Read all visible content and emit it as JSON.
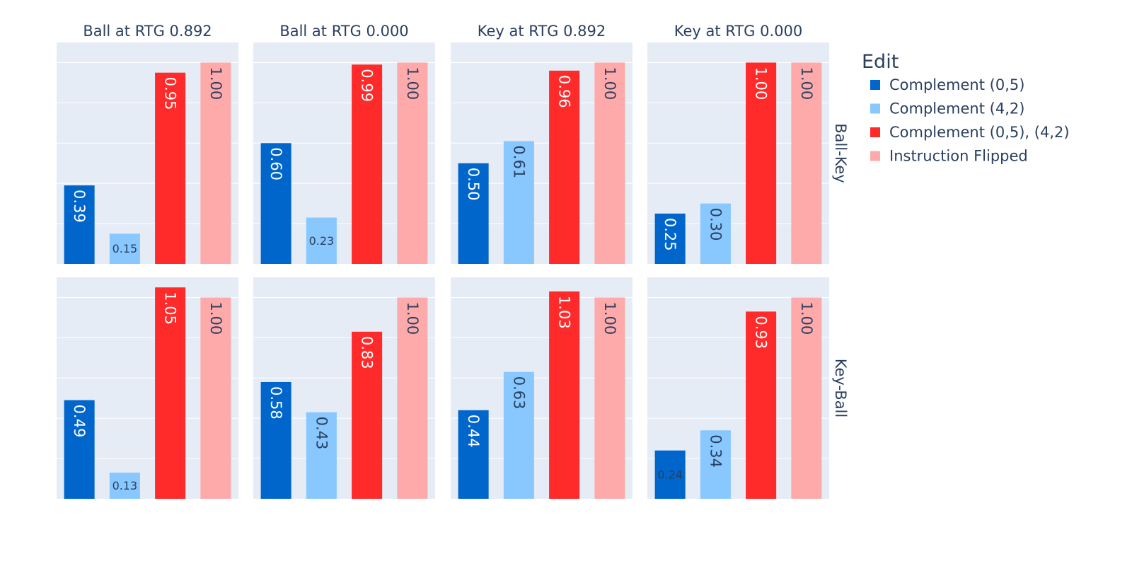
{
  "chart_data": {
    "type": "bar",
    "layout": "facet-grid",
    "ylim": [
      0,
      1.1
    ],
    "grid": true,
    "legend_position": "top-right",
    "legend": {
      "title": "Edit",
      "entries": [
        {
          "name": "Complement (0,5)",
          "color": "#0066cc"
        },
        {
          "name": "Complement (4,2)",
          "color": "#88c8ff"
        },
        {
          "name": "Complement (0,5), (4,2)",
          "color": "#ff2a2a"
        },
        {
          "name": "Instruction Flipped",
          "color": "#ffaaaa"
        }
      ]
    },
    "column_titles": [
      "Ball at RTG 0.892",
      "Ball at RTG 0.000",
      "Key at RTG 0.892",
      "Key at RTG 0.000"
    ],
    "row_titles": [
      "Ball-Key",
      "Key-Ball"
    ],
    "panels": [
      [
        {
          "values": [
            0.39,
            0.15,
            0.95,
            1.0
          ],
          "labels": [
            "0.39",
            "0.15",
            "0.95",
            "1.00"
          ]
        },
        {
          "values": [
            0.6,
            0.23,
            0.99,
            1.0
          ],
          "labels": [
            "0.60",
            "0.23",
            "0.99",
            "1.00"
          ]
        },
        {
          "values": [
            0.5,
            0.61,
            0.96,
            1.0
          ],
          "labels": [
            "0.50",
            "0.61",
            "0.96",
            "1.00"
          ]
        },
        {
          "values": [
            0.25,
            0.3,
            1.0,
            1.0
          ],
          "labels": [
            "0.25",
            "0.30",
            "1.00",
            "1.00"
          ]
        }
      ],
      [
        {
          "values": [
            0.49,
            0.13,
            1.05,
            1.0
          ],
          "labels": [
            "0.49",
            "0.13",
            "1.05",
            "1.00"
          ]
        },
        {
          "values": [
            0.58,
            0.43,
            0.83,
            1.0
          ],
          "labels": [
            "0.58",
            "0.43",
            "0.83",
            "1.00"
          ]
        },
        {
          "values": [
            0.44,
            0.63,
            1.03,
            1.0
          ],
          "labels": [
            "0.44",
            "0.63",
            "1.03",
            "1.00"
          ]
        },
        {
          "values": [
            0.24,
            0.34,
            0.93,
            1.0
          ],
          "labels": [
            "0.24",
            "0.34",
            "0.93",
            "1.00"
          ]
        }
      ]
    ]
  }
}
